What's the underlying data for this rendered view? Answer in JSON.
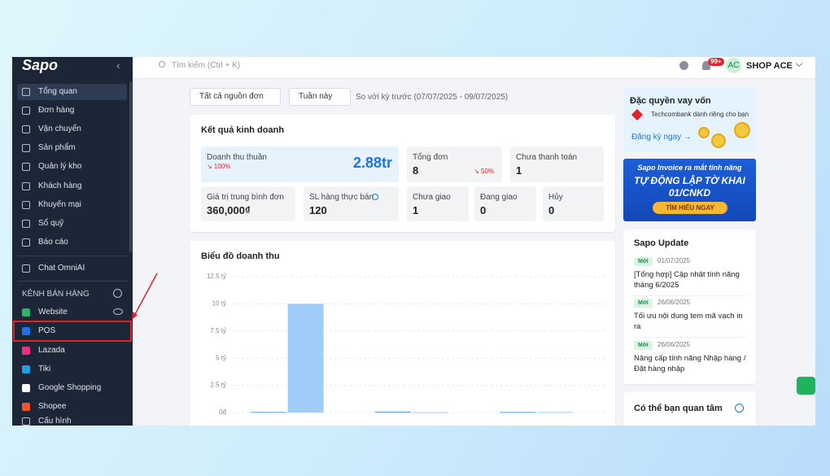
{
  "sidebar": {
    "logo": "Sapo",
    "collapse": "‹",
    "menu": [
      "Tổng quan",
      "Đơn hàng",
      "Vận chuyển",
      "Sản phẩm",
      "Quản lý kho",
      "Khách hàng",
      "Khuyến mại",
      "Sổ quỹ",
      "Báo cáo"
    ],
    "chat": "Chat OmniAI",
    "channels_title": "KÊNH BÁN HÀNG",
    "channels": [
      "Website",
      "POS",
      "Lazada",
      "Tiki",
      "Google Shopping",
      "Shopee"
    ],
    "settings": "Cấu hình"
  },
  "topbar": {
    "search_placeholder": "Tìm kiếm (Ctrl + K)",
    "badge": "99+",
    "avatar": "AC",
    "shop": "SHOP ACE"
  },
  "filters": {
    "source": "Tất cả nguồn đơn",
    "period": "Tuần này",
    "compare": "So với kỳ trước (07/07/2025 - 09/07/2025)"
  },
  "business": {
    "title": "Kết quả kinh doanh",
    "metrics": [
      {
        "label": "Doanh thu thuần",
        "value": "2.88tr",
        "change": "↘ 100%"
      },
      {
        "label": "Tổng đơn",
        "value": "8",
        "change": "↘ 50%"
      },
      {
        "label": "Chưa thanh toán",
        "value": "1"
      },
      {
        "label": "Giá trị trung bình đơn",
        "value": "360,000₫"
      },
      {
        "label": "SL hàng thực bán",
        "value": "120"
      },
      {
        "label": "Chưa giao",
        "value": "1"
      },
      {
        "label": "Đang giao",
        "value": "0"
      },
      {
        "label": "Hủy",
        "value": "0"
      }
    ]
  },
  "revenue_chart": {
    "type": "bar",
    "title": "Biểu đồ doanh thu",
    "categories": [
      null,
      null,
      null
    ],
    "series": [
      {
        "color": "#5b9be6",
        "values": [
          0.05,
          0.08,
          0.05
        ]
      },
      {
        "color": "#9fcdf7",
        "values": [
          10,
          0.03,
          0.05
        ]
      }
    ],
    "ylim": [
      0,
      12.5
    ],
    "yticks": [
      {
        "value": 0,
        "label": "0đ"
      },
      {
        "value": 2.5,
        "label": "2.5 tỷ"
      },
      {
        "value": 5,
        "label": "5 tỷ"
      },
      {
        "value": 7.5,
        "label": "7.5 tỷ"
      },
      {
        "value": 10,
        "label": "10 tỷ"
      },
      {
        "value": 12.5,
        "label": "12.5 tỷ"
      }
    ],
    "grid": true
  },
  "promo_loan": {
    "title": "Đặc quyền vay vốn",
    "bank": "Techcombank dành riêng cho bạn",
    "cta": "Đăng ký ngay →"
  },
  "promo_invoice": {
    "line1": "Sapo Invoice ra mắt tính năng",
    "line2": "TỰ ĐỘNG LẬP TỜ KHAI",
    "line3": "01/CNKD",
    "button": "TÌM HIỂU NGAY"
  },
  "updates": {
    "title": "Sapo Update",
    "items": [
      {
        "badge": "Mới",
        "date": "01/07/2025",
        "text": "[Tổng hợp] Cập nhật tính năng tháng 6/2025"
      },
      {
        "badge": "Mới",
        "date": "26/06/2025",
        "text": "Tối ưu nội dung tem mã vạch in ra"
      },
      {
        "badge": "Mới",
        "date": "26/06/2025",
        "text": "Nâng cấp tính năng Nhập hàng / Đặt hàng nhập"
      }
    ]
  },
  "interest": {
    "title": "Có thể bạn quan tâm"
  }
}
